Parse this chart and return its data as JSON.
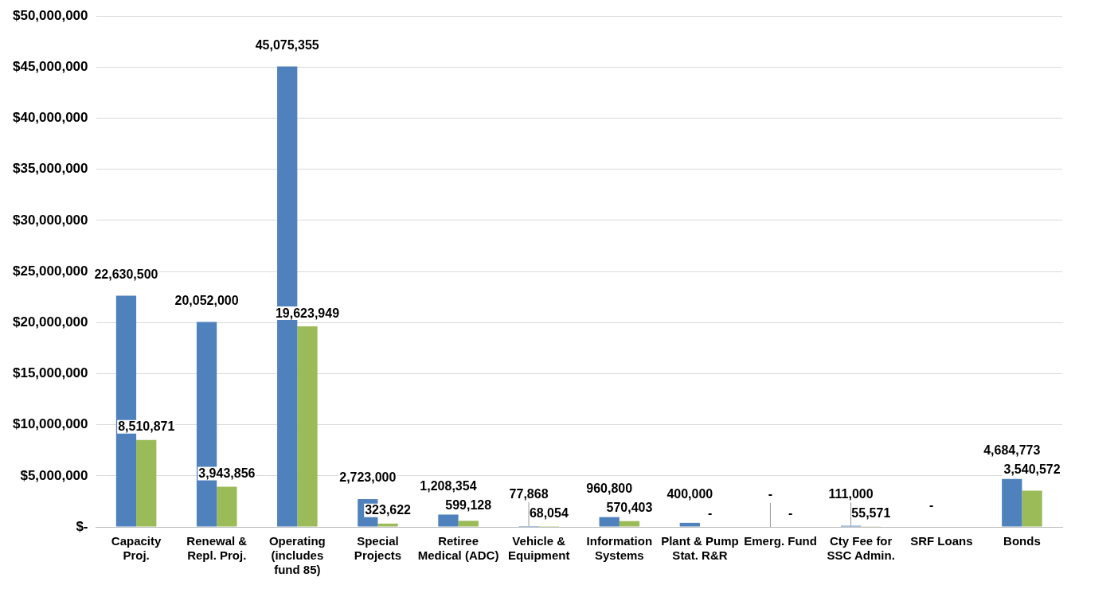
{
  "chart_data": {
    "type": "bar",
    "categories": [
      "Capacity Proj.",
      "Renewal & Repl. Proj.",
      "Operating (includes fund 85)",
      "Special Projects",
      "Retiree Medical (ADC)",
      "Vehicle & Equipment",
      "Information Systems",
      "Plant & Pump Stat. R&R",
      "Emerg. Fund",
      "Cty Fee for SSC Admin.",
      "SRF Loans",
      "Bonds"
    ],
    "series": [
      {
        "color": "#4f81bd",
        "values": [
          22630500,
          20052000,
          45075355,
          2723000,
          1208354,
          77868,
          960800,
          400000,
          0,
          111000,
          0,
          4684773
        ],
        "value_labels": [
          "22,630,500",
          "20,052,000",
          "45,075,355",
          "2,723,000",
          "1,208,354",
          "77,868",
          "960,800",
          "400,000",
          "-",
          "111,000",
          "-",
          "4,684,773"
        ]
      },
      {
        "color": "#9bbb59",
        "values": [
          8510871,
          3943856,
          19623949,
          323622,
          599128,
          68054,
          570403,
          0,
          0,
          55571,
          0,
          3540572
        ],
        "value_labels": [
          "8,510,871",
          "3,943,856",
          "19,623,949",
          "323,622",
          "599,128",
          "68,054",
          "570,403",
          "-",
          "-",
          "55,571",
          null,
          "3,540,572"
        ]
      }
    ],
    "ylim": [
      0,
      50000000
    ],
    "yticks": [
      {
        "value": 0,
        "label": "$-"
      },
      {
        "value": 5000000,
        "label": "$5,000,000"
      },
      {
        "value": 10000000,
        "label": "$10,000,000"
      },
      {
        "value": 15000000,
        "label": "$15,000,000"
      },
      {
        "value": 20000000,
        "label": "$20,000,000"
      },
      {
        "value": 25000000,
        "label": "$25,000,000"
      },
      {
        "value": 30000000,
        "label": "$30,000,000"
      },
      {
        "value": 35000000,
        "label": "$35,000,000"
      },
      {
        "value": 40000000,
        "label": "$40,000,000"
      },
      {
        "value": 45000000,
        "label": "$45,000,000"
      },
      {
        "value": 50000000,
        "label": "$50,000,000"
      }
    ],
    "grid": "y",
    "legend": false
  }
}
